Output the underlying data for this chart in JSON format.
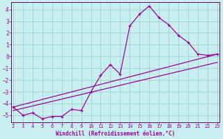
{
  "xlabel": "Windchill (Refroidissement éolien,°C)",
  "bg_color": "#c8eef0",
  "grid_color": "#9ecece",
  "line_color": "#990099",
  "spine_color": "#660066",
  "x_ticks": [
    2,
    3,
    4,
    5,
    6,
    7,
    8,
    9,
    10,
    11,
    12,
    13,
    14,
    15,
    16,
    17,
    18,
    19,
    20,
    21,
    22,
    23
  ],
  "y_ticks": [
    -5,
    -4,
    -3,
    -2,
    -1,
    0,
    1,
    2,
    3,
    4
  ],
  "xlim": [
    1.8,
    23.2
  ],
  "ylim": [
    -5.6,
    4.6
  ],
  "series1_x": [
    2,
    3,
    4,
    5,
    6,
    7,
    8,
    9,
    10,
    11,
    12,
    13,
    14,
    15,
    16,
    17,
    18,
    19,
    20,
    21,
    22,
    23
  ],
  "series1_y": [
    -4.3,
    -5.0,
    -4.8,
    -5.3,
    -5.1,
    -5.1,
    -4.5,
    -4.6,
    -3.0,
    -1.6,
    -0.7,
    -1.5,
    2.6,
    3.6,
    4.3,
    3.3,
    2.7,
    1.8,
    1.2,
    0.2,
    0.1,
    0.2
  ],
  "series2_x": [
    2,
    23
  ],
  "series2_y": [
    -4.3,
    0.2
  ],
  "series3_x": [
    2,
    23
  ],
  "series3_y": [
    -4.6,
    -0.5
  ],
  "tick_fontsize": 5.0,
  "xlabel_fontsize": 5.5
}
